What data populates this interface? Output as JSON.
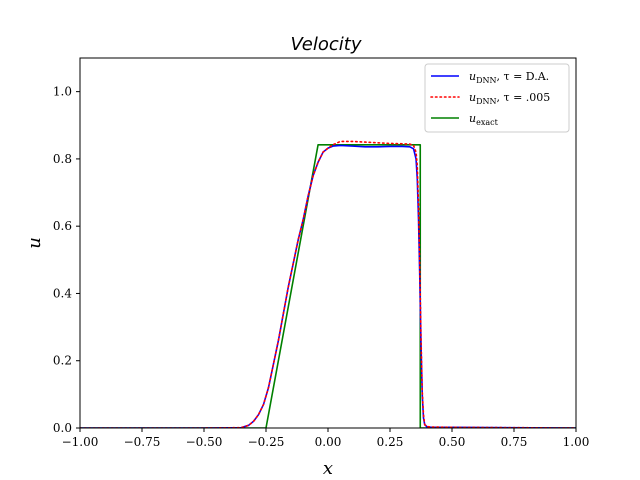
{
  "chart_data": {
    "type": "line",
    "title": "Velocity",
    "xlabel": "x",
    "ylabel": "u",
    "xlim": [
      -1.0,
      1.0
    ],
    "ylim": [
      0.0,
      1.1
    ],
    "xticks": [
      -1.0,
      -0.75,
      -0.5,
      -0.25,
      0.0,
      0.25,
      0.5,
      0.75,
      1.0
    ],
    "xtick_labels": [
      "−1.00",
      "−0.75",
      "−0.50",
      "−0.25",
      "0.00",
      "0.25",
      "0.50",
      "0.75",
      "1.00"
    ],
    "yticks": [
      0.0,
      0.2,
      0.4,
      0.6,
      0.8,
      1.0
    ],
    "ytick_labels": [
      "0.0",
      "0.2",
      "0.4",
      "0.6",
      "0.8",
      "1.0"
    ],
    "grid": false,
    "legend_position": "top-right",
    "series": [
      {
        "name": "u_DNN, τ = D.A.",
        "color": "#0000ff",
        "style": "solid",
        "x": [
          -1.0,
          -0.5,
          -0.35,
          -0.32,
          -0.3,
          -0.28,
          -0.26,
          -0.24,
          -0.22,
          -0.2,
          -0.18,
          -0.16,
          -0.14,
          -0.12,
          -0.1,
          -0.08,
          -0.06,
          -0.04,
          -0.02,
          0.0,
          0.02,
          0.05,
          0.1,
          0.15,
          0.2,
          0.25,
          0.3,
          0.33,
          0.345,
          0.355,
          0.36,
          0.365,
          0.37,
          0.375,
          0.38,
          0.385,
          0.39,
          0.4,
          0.42,
          0.5,
          1.0
        ],
        "y": [
          0.0,
          0.0,
          0.001,
          0.008,
          0.02,
          0.04,
          0.07,
          0.12,
          0.19,
          0.26,
          0.34,
          0.42,
          0.49,
          0.56,
          0.62,
          0.69,
          0.75,
          0.79,
          0.82,
          0.832,
          0.838,
          0.84,
          0.838,
          0.836,
          0.836,
          0.837,
          0.837,
          0.836,
          0.83,
          0.8,
          0.74,
          0.62,
          0.45,
          0.25,
          0.1,
          0.03,
          0.01,
          0.003,
          0.002,
          0.002,
          0.0
        ]
      },
      {
        "name": "u_DNN, τ = .005",
        "color": "#ff0000",
        "style": "dotted",
        "x": [
          -1.0,
          -0.5,
          -0.35,
          -0.32,
          -0.3,
          -0.28,
          -0.26,
          -0.24,
          -0.22,
          -0.2,
          -0.18,
          -0.16,
          -0.14,
          -0.12,
          -0.1,
          -0.08,
          -0.06,
          -0.04,
          -0.02,
          0.0,
          0.02,
          0.05,
          0.1,
          0.15,
          0.2,
          0.25,
          0.3,
          0.33,
          0.345,
          0.355,
          0.36,
          0.365,
          0.37,
          0.375,
          0.38,
          0.385,
          0.39,
          0.4,
          0.42,
          0.5,
          1.0
        ],
        "y": [
          0.0,
          0.0,
          0.001,
          0.008,
          0.02,
          0.04,
          0.07,
          0.12,
          0.19,
          0.26,
          0.34,
          0.42,
          0.49,
          0.56,
          0.62,
          0.69,
          0.75,
          0.79,
          0.82,
          0.832,
          0.842,
          0.852,
          0.852,
          0.85,
          0.848,
          0.846,
          0.845,
          0.844,
          0.84,
          0.82,
          0.78,
          0.66,
          0.48,
          0.27,
          0.11,
          0.04,
          0.01,
          0.004,
          0.003,
          0.002,
          0.0
        ]
      },
      {
        "name": "u_exact",
        "color": "#008000",
        "style": "solid",
        "x": [
          -1.0,
          -0.25,
          -0.04,
          0.372,
          0.372,
          1.0
        ],
        "y": [
          0.0,
          0.0,
          0.842,
          0.842,
          0.0,
          0.0
        ]
      }
    ],
    "legend": {
      "entries": [
        {
          "main": "u",
          "sub": "DNN",
          "tail": ", τ = D.A."
        },
        {
          "main": "u",
          "sub": "DNN",
          "tail": ", τ = .005"
        },
        {
          "main": "u",
          "sub": "exact",
          "tail": ""
        }
      ]
    }
  }
}
